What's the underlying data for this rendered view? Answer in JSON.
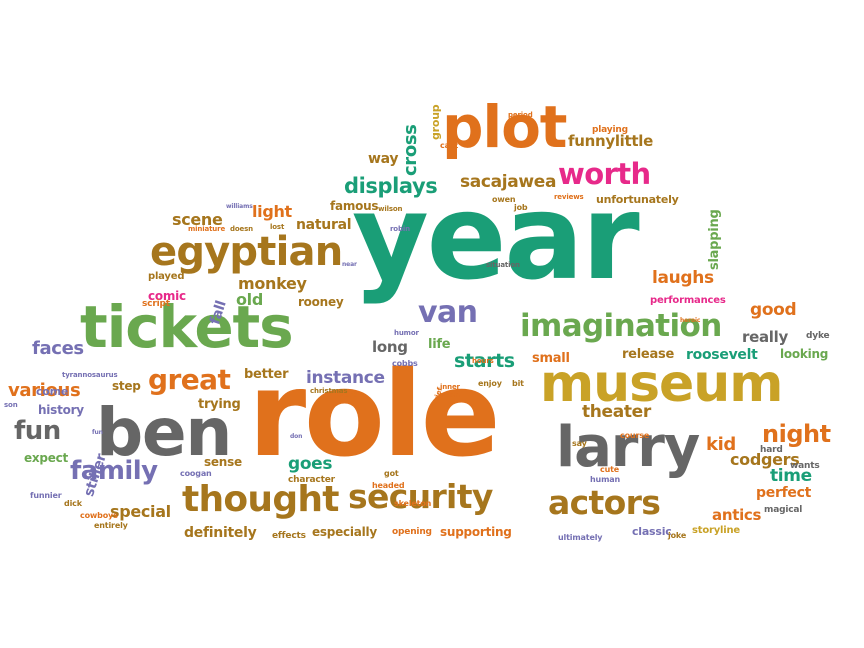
{
  "palette": {
    "green": "#6aa84f",
    "orange": "#e0711c",
    "gray": "#666666",
    "teal": "#1a9e77",
    "gold": "#c9a227",
    "purple": "#7570b3",
    "magenta": "#e7298a",
    "brown": "#a6761d"
  },
  "words": [
    {
      "text": "year",
      "color": "teal"
    },
    {
      "text": "role",
      "color": "orange"
    },
    {
      "text": "ben",
      "color": "gray"
    },
    {
      "text": "tickets",
      "color": "green"
    },
    {
      "text": "museum",
      "color": "gold"
    },
    {
      "text": "larry",
      "color": "gray"
    },
    {
      "text": "plot",
      "color": "orange"
    },
    {
      "text": "imagination",
      "color": "green"
    },
    {
      "text": "egyptian",
      "color": "brown"
    },
    {
      "text": "thought",
      "color": "brown"
    },
    {
      "text": "security",
      "color": "brown"
    },
    {
      "text": "actors",
      "color": "brown"
    },
    {
      "text": "worth",
      "color": "magenta"
    },
    {
      "text": "great",
      "color": "orange"
    },
    {
      "text": "family",
      "color": "purple"
    },
    {
      "text": "fun",
      "color": "gray"
    },
    {
      "text": "van",
      "color": "purple"
    },
    {
      "text": "night",
      "color": "orange"
    },
    {
      "text": "displays",
      "color": "teal"
    },
    {
      "text": "sacajawea",
      "color": "brown"
    },
    {
      "text": "funnylittle",
      "color": "brown"
    },
    {
      "text": "various",
      "color": "orange"
    },
    {
      "text": "faces",
      "color": "purple"
    },
    {
      "text": "starts",
      "color": "teal"
    },
    {
      "text": "instance",
      "color": "purple"
    },
    {
      "text": "kid",
      "color": "orange"
    },
    {
      "text": "theater",
      "color": "brown"
    },
    {
      "text": "codgers",
      "color": "brown"
    },
    {
      "text": "laughs",
      "color": "orange"
    },
    {
      "text": "goes",
      "color": "teal"
    },
    {
      "text": "time",
      "color": "teal"
    },
    {
      "text": "good",
      "color": "orange"
    },
    {
      "text": "really",
      "color": "gray"
    },
    {
      "text": "scene",
      "color": "brown"
    },
    {
      "text": "light",
      "color": "orange"
    },
    {
      "text": "natural",
      "color": "brown"
    },
    {
      "text": "monkey",
      "color": "brown"
    },
    {
      "text": "old",
      "color": "green"
    },
    {
      "text": "long",
      "color": "gray"
    },
    {
      "text": "cross",
      "color": "teal"
    },
    {
      "text": "way",
      "color": "brown"
    },
    {
      "text": "special",
      "color": "brown"
    },
    {
      "text": "definitely",
      "color": "brown"
    },
    {
      "text": "stiller",
      "color": "purple"
    },
    {
      "text": "antics",
      "color": "orange"
    },
    {
      "text": "perfect",
      "color": "orange"
    },
    {
      "text": "roosevelt",
      "color": "teal"
    },
    {
      "text": "release",
      "color": "brown"
    },
    {
      "text": "looking",
      "color": "green"
    },
    {
      "text": "life",
      "color": "green"
    },
    {
      "text": "small",
      "color": "orange"
    },
    {
      "text": "famous",
      "color": "brown"
    },
    {
      "text": "rooney",
      "color": "brown"
    },
    {
      "text": "fall",
      "color": "purple"
    },
    {
      "text": "comic",
      "color": "magenta"
    },
    {
      "text": "trying",
      "color": "brown"
    },
    {
      "text": "better",
      "color": "brown"
    },
    {
      "text": "step",
      "color": "brown"
    },
    {
      "text": "history",
      "color": "purple"
    },
    {
      "text": "come",
      "color": "purple"
    },
    {
      "text": "expect",
      "color": "green"
    },
    {
      "text": "sense",
      "color": "brown"
    },
    {
      "text": "especially",
      "color": "brown"
    },
    {
      "text": "supporting",
      "color": "orange"
    },
    {
      "text": "classic",
      "color": "purple"
    },
    {
      "text": "slapping",
      "color": "green"
    },
    {
      "text": "group",
      "color": "gold"
    },
    {
      "text": "unfortunately",
      "color": "brown"
    },
    {
      "text": "playing",
      "color": "orange"
    },
    {
      "text": "performances",
      "color": "magenta"
    },
    {
      "text": "storyline",
      "color": "gold"
    },
    {
      "text": "magical",
      "color": "gray"
    },
    {
      "text": "hard",
      "color": "gray"
    },
    {
      "text": "wants",
      "color": "gray"
    },
    {
      "text": "dyke",
      "color": "gray"
    },
    {
      "text": "played",
      "color": "brown"
    },
    {
      "text": "script",
      "color": "orange"
    },
    {
      "text": "entirely",
      "color": "brown"
    },
    {
      "text": "funnier",
      "color": "purple"
    },
    {
      "text": "coogan",
      "color": "purple"
    },
    {
      "text": "cowboys",
      "color": "orange"
    },
    {
      "text": "dick",
      "color": "brown"
    },
    {
      "text": "son",
      "color": "purple"
    },
    {
      "text": "character",
      "color": "brown"
    },
    {
      "text": "effects",
      "color": "brown"
    },
    {
      "text": "opening",
      "color": "orange"
    },
    {
      "text": "skeleton",
      "color": "orange"
    },
    {
      "text": "headed",
      "color": "orange"
    },
    {
      "text": "got",
      "color": "brown"
    },
    {
      "text": "cobbs",
      "color": "purple"
    },
    {
      "text": "human",
      "color": "purple"
    },
    {
      "text": "cute",
      "color": "orange"
    },
    {
      "text": "ultimately",
      "color": "purple"
    },
    {
      "text": "joke",
      "color": "brown"
    },
    {
      "text": "course",
      "color": "orange"
    },
    {
      "text": "say",
      "color": "brown"
    },
    {
      "text": "enjoy",
      "color": "brown"
    },
    {
      "text": "bit",
      "color": "brown"
    },
    {
      "text": "hours",
      "color": "orange"
    },
    {
      "text": "work",
      "color": "orange"
    },
    {
      "text": "christmas",
      "color": "brown"
    },
    {
      "text": "humor",
      "color": "purple"
    },
    {
      "text": "robin",
      "color": "purple"
    },
    {
      "text": "wilson",
      "color": "brown"
    },
    {
      "text": "owen",
      "color": "brown"
    },
    {
      "text": "job",
      "color": "brown"
    },
    {
      "text": "reviews",
      "color": "orange"
    },
    {
      "text": "cast",
      "color": "orange"
    },
    {
      "text": "period",
      "color": "orange"
    },
    {
      "text": "williams",
      "color": "purple"
    },
    {
      "text": "miniature",
      "color": "orange"
    },
    {
      "text": "doesn",
      "color": "brown"
    },
    {
      "text": "lost",
      "color": "brown"
    },
    {
      "text": "situation",
      "color": "gray"
    },
    {
      "text": "heroic",
      "color": "orange"
    },
    {
      "text": "tyrannosaurus",
      "color": "purple"
    },
    {
      "text": "near",
      "color": "purple"
    },
    {
      "text": "brief",
      "color": "orange"
    },
    {
      "text": "inner",
      "color": "orange"
    },
    {
      "text": "wasn",
      "color": "orange"
    },
    {
      "text": "don",
      "color": "purple"
    },
    {
      "text": "fun",
      "color": "purple"
    }
  ]
}
